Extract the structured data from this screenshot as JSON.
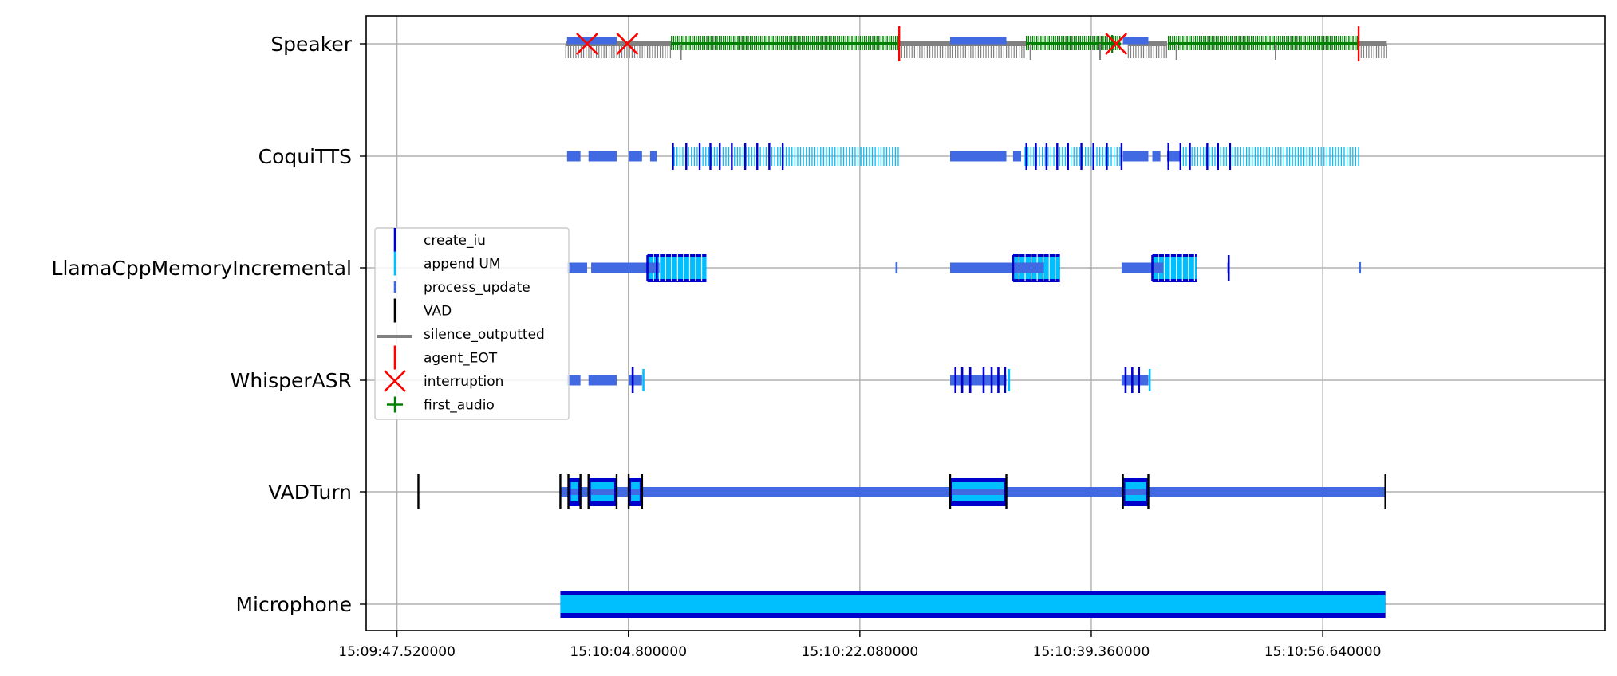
{
  "chart_data": {
    "type": "timeline",
    "title": "",
    "xlabel": "",
    "ylabel": "",
    "lanes": [
      "Microphone",
      "VADTurn",
      "WhisperASR",
      "LlamaCppMemoryIncremental",
      "CoquiTTS",
      "Speaker"
    ],
    "x_unit": "seconds after 15:09:47.520000",
    "xlim": [
      -2.3,
      90.2
    ],
    "x_ticks": [
      {
        "value": 0,
        "label": "15:09:47.520000"
      },
      {
        "value": 17.28,
        "label": "15:10:04.800000"
      },
      {
        "value": 34.56,
        "label": "15:10:22.080000"
      },
      {
        "value": 51.84,
        "label": "15:10:39.360000"
      },
      {
        "value": 69.12,
        "label": "15:10:56.640000"
      }
    ],
    "grid": true,
    "legend": {
      "placement": "center-left",
      "entries": [
        {
          "label": "create_iu",
          "color": "#0000cd",
          "marker": "vline"
        },
        {
          "label": "append UM",
          "color": "#00bfff",
          "marker": "vline"
        },
        {
          "label": "process_update",
          "color": "#4169e1",
          "marker": "short-vline"
        },
        {
          "label": "VAD",
          "color": "#000000",
          "marker": "vline"
        },
        {
          "label": "silence_outputted",
          "color": "#808080",
          "marker": "hline"
        },
        {
          "label": "agent_EOT",
          "color": "#ff0000",
          "marker": "vline"
        },
        {
          "label": "interruption",
          "color": "#ff0000",
          "marker": "x"
        },
        {
          "label": "first_audio",
          "color": "#008000",
          "marker": "plus"
        }
      ]
    },
    "series": {
      "Microphone": {
        "iu_span": [
          12.2,
          73.8
        ]
      },
      "VADTurn": {
        "process_line": [
          12.2,
          73.8
        ],
        "iu_boxes": [
          [
            12.8,
            13.7
          ],
          [
            14.3,
            16.4
          ],
          [
            17.3,
            18.3
          ],
          [
            41.3,
            45.5
          ],
          [
            54.2,
            56.1
          ]
        ],
        "vad_marks": [
          1.6,
          12.2,
          12.8,
          13.7,
          14.3,
          16.4,
          17.3,
          18.3,
          41.3,
          45.5,
          54.2,
          56.1,
          73.8
        ]
      },
      "WhisperASR": {
        "process_bars": [
          [
            12.7,
            13.7
          ],
          [
            14.3,
            16.4
          ],
          [
            17.3,
            18.3
          ],
          [
            41.3,
            45.5
          ],
          [
            54.1,
            56.1
          ]
        ],
        "create_iu": [
          17.6,
          41.7,
          42.2,
          42.8,
          43.8,
          44.4,
          44.9,
          45.4,
          54.4,
          54.9,
          55.4
        ],
        "append": [
          18.4,
          45.7,
          56.2
        ]
      },
      "LlamaCppMemoryIncremental": {
        "process_bars": [
          [
            12.7,
            14.2
          ],
          [
            14.5,
            19.6
          ],
          [
            41.3,
            48.3
          ],
          [
            54.1,
            57.2
          ],
          [
            62.0,
            62.1
          ]
        ],
        "token_blocks": [
          [
            18.7,
            23.1
          ],
          [
            46.0,
            49.5
          ],
          [
            56.4,
            59.7
          ]
        ],
        "create_iu": [
          18.7,
          19.4,
          46.0,
          56.4,
          62.1
        ],
        "append": [
          37.3,
          71.9
        ]
      },
      "CoquiTTS": {
        "process_bars": [
          [
            12.7,
            13.7
          ],
          [
            14.3,
            16.4
          ],
          [
            17.3,
            18.3
          ],
          [
            18.9,
            19.4
          ],
          [
            41.3,
            45.5
          ],
          [
            46.0,
            46.6
          ],
          [
            54.2,
            56.1
          ],
          [
            56.4,
            57.0
          ],
          [
            57.5,
            58.5
          ]
        ],
        "append_spans": [
          [
            20.7,
            37.5
          ],
          [
            46.9,
            54.1
          ],
          [
            58.5,
            71.8
          ]
        ],
        "create_iu": [
          20.6,
          21.6,
          22.6,
          23.4,
          24.1,
          25.0,
          26.0,
          26.9,
          27.8,
          28.8,
          47.0,
          47.7,
          48.5,
          49.3,
          50.1,
          51.1,
          52.0,
          53.0,
          54.1,
          57.6,
          58.5,
          59.2,
          60.5,
          61.3,
          62.2
        ]
      },
      "Speaker": {
        "silence_spans": [
          [
            12.6,
            20.5
          ],
          [
            37.5,
            47.0
          ],
          [
            54.6,
            57.5
          ],
          [
            71.8,
            73.9
          ]
        ],
        "process_bars": [
          [
            12.7,
            16.4
          ],
          [
            41.3,
            45.5
          ],
          [
            54.2,
            56.1
          ]
        ],
        "audio_spans": [
          [
            20.5,
            37.4
          ],
          [
            47.0,
            54.0
          ],
          [
            57.6,
            71.7
          ]
        ],
        "silence_marks": [
          21.2,
          47.3,
          52.5,
          58.2,
          65.6
        ],
        "agent_eot": [
          37.5,
          71.8
        ],
        "interruptions": [
          14.2,
          17.2,
          53.7
        ],
        "first_audio": [
          53.4
        ]
      }
    }
  }
}
